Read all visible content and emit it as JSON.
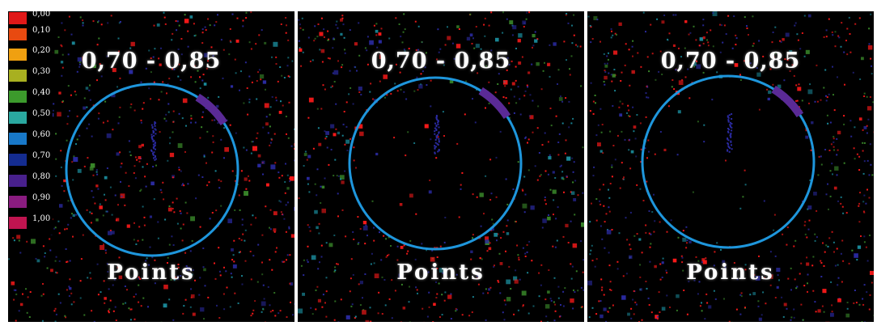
{
  "legend": {
    "ticks": [
      "0,00",
      "0,10",
      "0,20",
      "0,30",
      "0,40",
      "0,50",
      "0,60",
      "0,70",
      "0,80",
      "0,90",
      "1,00"
    ],
    "colors": [
      "#e01818",
      "#e84a10",
      "#f0a010",
      "#a8b020",
      "#3c9a2c",
      "#2aa8a0",
      "#1878c8",
      "#142c90",
      "#48208c",
      "#8a1c80",
      "#c01450"
    ]
  },
  "panels": [
    {
      "id": "p1",
      "range_label": "0,70 - 0,85",
      "points_label": "Points"
    },
    {
      "id": "p2",
      "range_label": "0,70 - 0,85",
      "points_label": "Points"
    },
    {
      "id": "p3",
      "range_label": "0,70 - 0,85",
      "points_label": "Points"
    }
  ],
  "colors": {
    "background": "#000000",
    "circle": "#1e96dc",
    "arc_highlight": "#5a2a96",
    "dots_primary": "#ff1a1a",
    "dots_secondary": "#2a2aa0"
  }
}
